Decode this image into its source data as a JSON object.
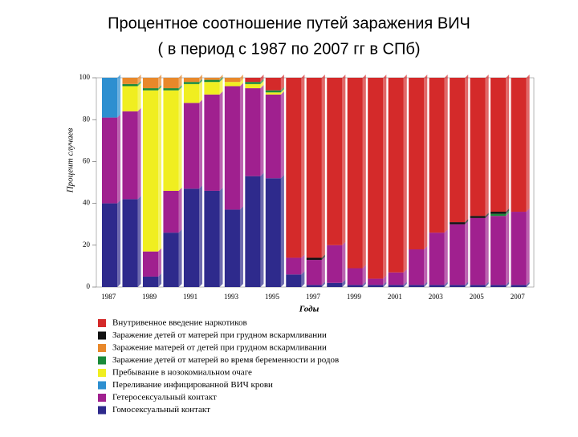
{
  "chart_data": {
    "type": "bar",
    "title": "Процентное соотношение путей заражения ВИЧ",
    "subtitle": "( в период с 1987 по 2007 гг в СПб)",
    "y_label": "Процент случаев",
    "x_label": "Годы",
    "stacked": true,
    "categories": [
      "1987",
      null,
      "1989",
      null,
      "1991",
      null,
      "1993",
      null,
      "1995",
      null,
      "1997",
      null,
      "1999",
      null,
      "2001",
      null,
      "2003",
      null,
      "2005",
      null,
      "2007"
    ],
    "ylim": [
      0,
      100
    ],
    "yticks": [
      0,
      20,
      40,
      60,
      80,
      100
    ],
    "series": [
      {
        "name": "Гомосексуальный контакт",
        "color": "#2e2a8c",
        "values": [
          40,
          42,
          5,
          26,
          47,
          46,
          37,
          53,
          52,
          6,
          1,
          2,
          1,
          1,
          1,
          1,
          1,
          1,
          1,
          1,
          1
        ]
      },
      {
        "name": "Гетеросексуальный контакт",
        "color": "#a0208f",
        "values": [
          41,
          42,
          12,
          20,
          41,
          46,
          59,
          42,
          40,
          8,
          12,
          18,
          8,
          3,
          6,
          17,
          25,
          29,
          32,
          33,
          35
        ]
      },
      {
        "name": "Переливание  инфицированной ВИЧ крови",
        "color": "#2d8fd0",
        "values": [
          19,
          0,
          0,
          0,
          0,
          0,
          0,
          0,
          0,
          0,
          0,
          0,
          0,
          0,
          0,
          0,
          0,
          0,
          0,
          0,
          0
        ]
      },
      {
        "name": "Пребывание в нозокомиальном очаге",
        "color": "#f0ee20",
        "values": [
          0,
          12,
          77,
          48,
          9,
          6,
          2,
          2,
          1,
          0,
          0,
          0,
          0,
          0,
          0,
          0,
          0,
          0,
          0,
          0,
          0
        ]
      },
      {
        "name": "Заражение детей от матерей во время беременности и  родов",
        "color": "#1a8a3a",
        "values": [
          0,
          1,
          1,
          1,
          1,
          1,
          0,
          1,
          1,
          0,
          0,
          0,
          0,
          0,
          0,
          0,
          0,
          0,
          0,
          1,
          0
        ]
      },
      {
        "name": "Заражение матерей от детей при грудном вскармливании",
        "color": "#e8882a",
        "values": [
          0,
          3,
          5,
          5,
          2,
          1,
          2,
          0,
          0,
          0,
          0,
          0,
          0,
          0,
          0,
          0,
          0,
          0,
          0,
          0,
          0
        ]
      },
      {
        "name": "Заражение детей от матерей при грудном вскармливании",
        "color": "#111111",
        "values": [
          0,
          0,
          0,
          0,
          0,
          0,
          0,
          0,
          0,
          0,
          1,
          0,
          0,
          0,
          0,
          0,
          0,
          1,
          1,
          1,
          0
        ]
      },
      {
        "name": "Внутривенное введение наркотиков",
        "color": "#d42a2a",
        "values": [
          0,
          0,
          0,
          0,
          0,
          0,
          0,
          2,
          6,
          86,
          86,
          80,
          91,
          96,
          93,
          82,
          74,
          69,
          66,
          64,
          64
        ]
      }
    ]
  }
}
